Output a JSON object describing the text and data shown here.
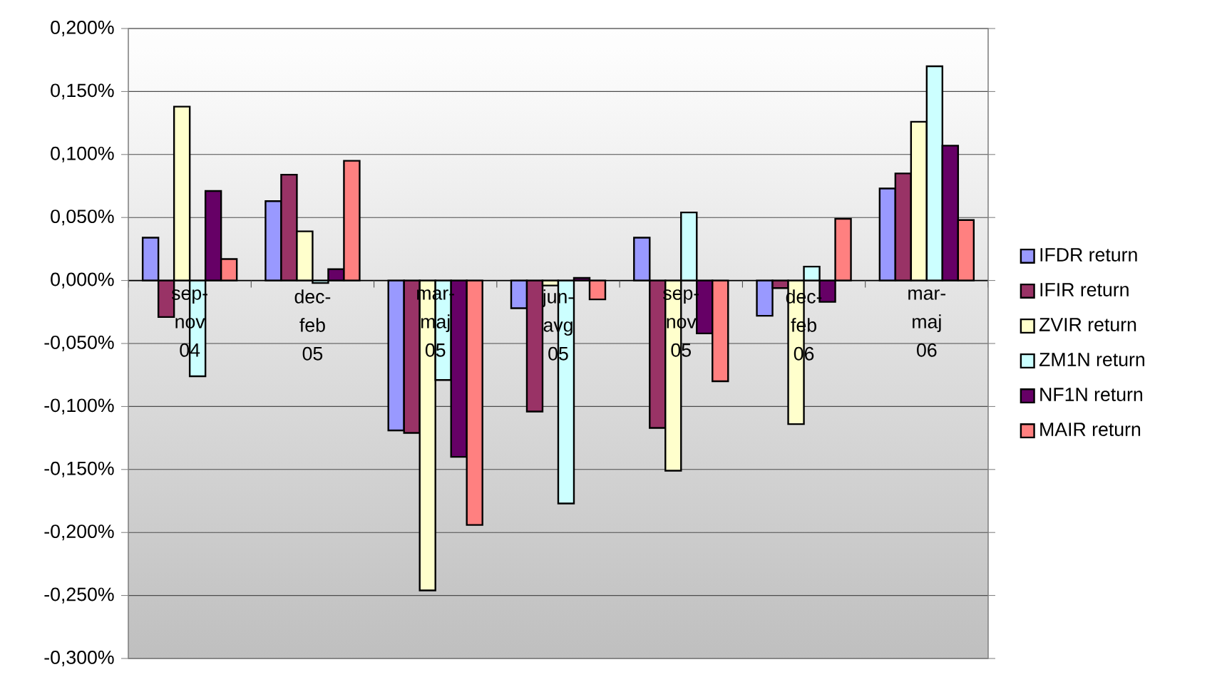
{
  "chart_data": {
    "type": "bar",
    "categories": [
      "sep-nov 04",
      "dec-feb 05",
      "mar-maj 05",
      "jun-avg 05",
      "sep-nov 05",
      "dec-feb 06",
      "mar-maj 06"
    ],
    "series": [
      {
        "name": "IFDR return",
        "color": "#9999ff",
        "values": [
          0.034,
          0.063,
          -0.119,
          -0.022,
          0.034,
          -0.028,
          0.073
        ]
      },
      {
        "name": "IFIR return",
        "color": "#993366",
        "values": [
          -0.029,
          0.084,
          -0.121,
          -0.104,
          -0.117,
          -0.006,
          0.085
        ]
      },
      {
        "name": "ZVIR return",
        "color": "#ffffcc",
        "values": [
          0.138,
          0.039,
          -0.246,
          -0.004,
          -0.151,
          -0.114,
          0.126
        ]
      },
      {
        "name": "ZM1N return",
        "color": "#ccffff",
        "values": [
          -0.076,
          -0.002,
          -0.079,
          -0.177,
          0.054,
          0.011,
          0.17
        ]
      },
      {
        "name": "NF1N return",
        "color": "#660066",
        "values": [
          0.071,
          0.009,
          -0.14,
          0.002,
          -0.042,
          -0.017,
          0.107
        ]
      },
      {
        "name": "MAIR return",
        "color": "#ff8080",
        "values": [
          0.017,
          0.095,
          -0.194,
          -0.015,
          -0.08,
          0.049,
          0.048
        ]
      }
    ],
    "ylim": [
      -0.3,
      0.2
    ],
    "yticks": [
      {
        "value": -0.3,
        "label": "-0,300%"
      },
      {
        "value": -0.25,
        "label": "-0,250%"
      },
      {
        "value": -0.2,
        "label": "-0,200%"
      },
      {
        "value": -0.15,
        "label": "-0,150%"
      },
      {
        "value": -0.1,
        "label": "-0,100%"
      },
      {
        "value": -0.05,
        "label": "-0,050%"
      },
      {
        "value": 0,
        "label": "0,000%"
      },
      {
        "value": 0.05,
        "label": "0,050%"
      },
      {
        "value": 0.1,
        "label": "0,100%"
      },
      {
        "value": 0.15,
        "label": "0,150%"
      },
      {
        "value": 0.2,
        "label": "0,200%"
      }
    ],
    "grid": "y",
    "legend": "right"
  }
}
